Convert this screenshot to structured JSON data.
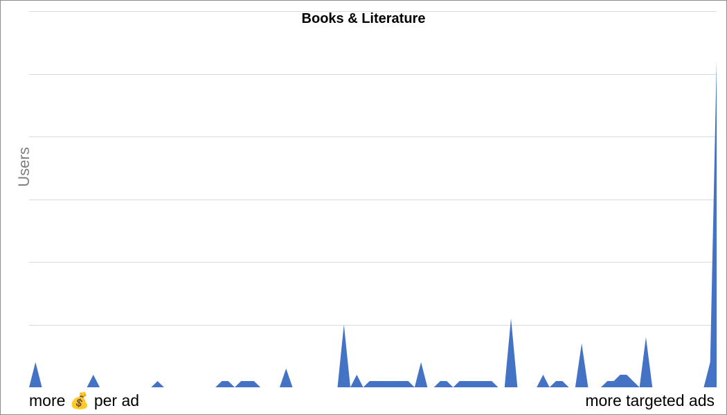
{
  "chart_data": {
    "type": "area",
    "title": "Books & Literature",
    "xlabel": "",
    "ylabel": "Users",
    "x_axis_left_label": "more 💰 per ad",
    "x_axis_right_label": "more targeted ads",
    "y_tick_labels_shown": false,
    "grid": true,
    "legend": "none",
    "series": [
      {
        "color": "#4472c4",
        "values": [
          0,
          4,
          0,
          0,
          0,
          0,
          0,
          0,
          0,
          0,
          2,
          0,
          0,
          0,
          0,
          0,
          0,
          0,
          0,
          0,
          1,
          0,
          0,
          0,
          0,
          0,
          0,
          0,
          0,
          0,
          1,
          1,
          0,
          1,
          1,
          1,
          0,
          0,
          0,
          0,
          3,
          0,
          0,
          0,
          0,
          0,
          0,
          0,
          0,
          10,
          0,
          2,
          0,
          1,
          1,
          1,
          1,
          1,
          1,
          1,
          0,
          4,
          0,
          0,
          1,
          1,
          0,
          1,
          1,
          1,
          1,
          1,
          1,
          0,
          0,
          11,
          0,
          0,
          0,
          0,
          2,
          0,
          1,
          1,
          0,
          0,
          7,
          0,
          0,
          0,
          1,
          1,
          2,
          2,
          1,
          0,
          8,
          0,
          0,
          0,
          0,
          0,
          0,
          0,
          0,
          0,
          4,
          52
        ]
      }
    ]
  }
}
